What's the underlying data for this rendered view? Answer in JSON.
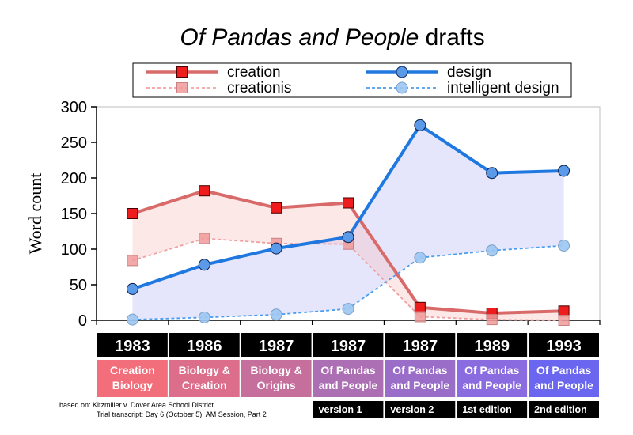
{
  "chart_data": {
    "type": "line",
    "title": {
      "italic": "Of Pandas and People",
      "rest": " drafts"
    },
    "ylabel": "Word count",
    "xlabel": "",
    "ylim": [
      0,
      300
    ],
    "yticks": [
      0,
      50,
      100,
      150,
      200,
      250,
      300
    ],
    "grid": false,
    "legend_position": "top",
    "categories": [
      "1983",
      "1986",
      "1987",
      "1987",
      "1987",
      "1989",
      "1993"
    ],
    "books": [
      [
        "Creation",
        "Biology"
      ],
      [
        "Biology &",
        "Creation"
      ],
      [
        "Biology &",
        "Origins"
      ],
      [
        "Of Pandas",
        "and People"
      ],
      [
        "Of Pandas",
        "and People"
      ],
      [
        "Of Pandas",
        "and People"
      ],
      [
        "Of Pandas",
        "and People"
      ]
    ],
    "book_colors": [
      "#f26e7a",
      "#dc6e8c",
      "#c66f9c",
      "#ad6fb4",
      "#9a6ec8",
      "#8a6ce0",
      "#6a66f0"
    ],
    "versions": [
      "",
      "",
      "",
      "version 1",
      "version 2",
      "1st edition",
      "2nd edition"
    ],
    "series": [
      {
        "name": "creation",
        "values": [
          150,
          182,
          158,
          165,
          18,
          10,
          13
        ],
        "color": "#d86a6a",
        "marker": "square",
        "style": "solid"
      },
      {
        "name": "creationis",
        "values": [
          84,
          115,
          108,
          107,
          5,
          1,
          0
        ],
        "color": "#f0a0a0",
        "marker": "square",
        "style": "dashed"
      },
      {
        "name": "design",
        "values": [
          44,
          78,
          101,
          117,
          274,
          207,
          210
        ],
        "color": "#1e78e0",
        "marker": "circle",
        "style": "solid"
      },
      {
        "name": "intelligent design",
        "values": [
          1,
          4,
          8,
          16,
          88,
          98,
          105
        ],
        "color": "#4a9cf0",
        "marker": "circle",
        "style": "dashed"
      }
    ],
    "source": [
      "based on: Kitzmiller v. Dover Area School District",
      "Trial transcript: Day 6 (October 5), AM Session, Part 2"
    ]
  }
}
